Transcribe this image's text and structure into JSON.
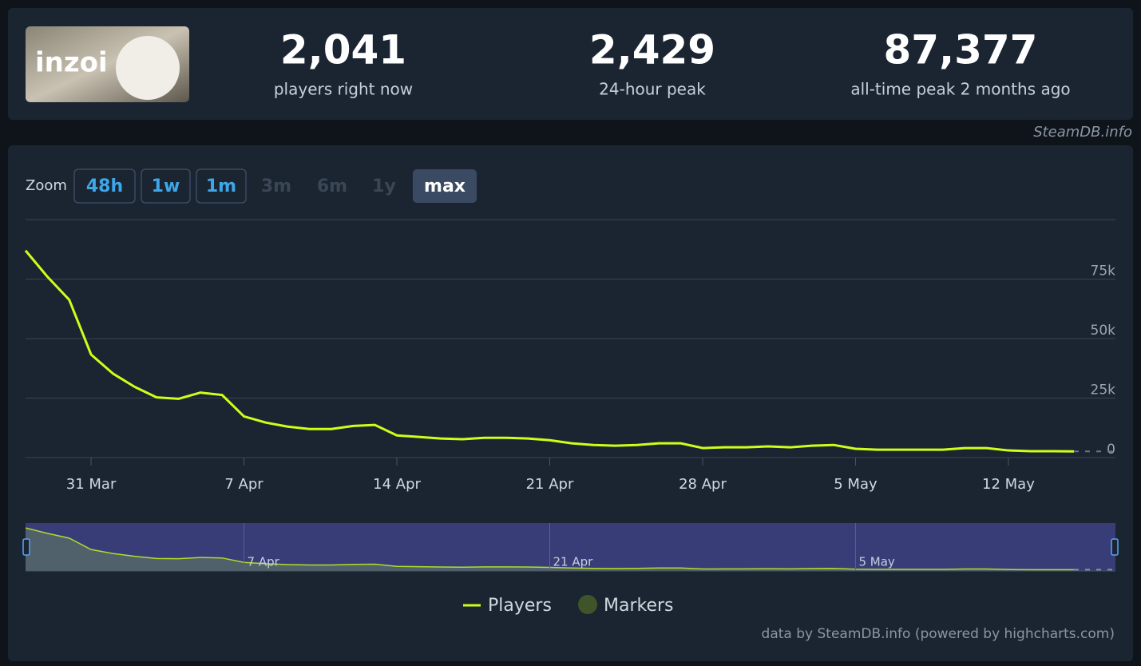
{
  "header": {
    "logo_text": "inzoi",
    "stats": [
      {
        "value": "2,041",
        "label": "players right now"
      },
      {
        "value": "2,429",
        "label": "24-hour peak"
      },
      {
        "value": "87,377",
        "label": "all-time peak 2 months ago"
      }
    ],
    "source": "SteamDB.info"
  },
  "zoom": {
    "label": "Zoom",
    "buttons": [
      {
        "label": "48h",
        "state": "enabled"
      },
      {
        "label": "1w",
        "state": "enabled"
      },
      {
        "label": "1m",
        "state": "enabled"
      },
      {
        "label": "3m",
        "state": "disabled"
      },
      {
        "label": "6m",
        "state": "disabled"
      },
      {
        "label": "1y",
        "state": "disabled"
      },
      {
        "label": "max",
        "state": "selected"
      }
    ]
  },
  "chart_data": {
    "type": "line",
    "categories": [
      null,
      null,
      null,
      "31 Mar",
      null,
      null,
      null,
      null,
      null,
      null,
      "7 Apr",
      null,
      null,
      null,
      null,
      null,
      null,
      "14 Apr",
      null,
      null,
      null,
      null,
      null,
      null,
      "21 Apr",
      null,
      null,
      null,
      null,
      null,
      null,
      "28 Apr",
      null,
      null,
      null,
      null,
      null,
      null,
      "5 May",
      null,
      null,
      null,
      null,
      null,
      null,
      "12 May",
      null,
      null,
      null
    ],
    "series": [
      {
        "name": "Players",
        "color": "#ccff1a",
        "values": [
          87000,
          76000,
          66300,
          43300,
          35300,
          29700,
          25300,
          24700,
          27300,
          26300,
          17300,
          14700,
          13000,
          12000,
          12000,
          13300,
          13700,
          9300,
          8700,
          8000,
          7700,
          8300,
          8300,
          8000,
          7300,
          6000,
          5300,
          5000,
          5300,
          6000,
          6000,
          4000,
          4300,
          4300,
          4700,
          4300,
          5000,
          5300,
          3700,
          3300,
          3300,
          3300,
          3300,
          4000,
          4000,
          3000,
          2700,
          2700,
          2600
        ]
      }
    ],
    "markers": {
      "name": "Markers",
      "color": "#3f5428"
    },
    "ylim": [
      0,
      100000
    ],
    "yticks": [
      0,
      {
        "value": 25000,
        "label": "25k"
      },
      {
        "value": 50000,
        "label": "50k"
      },
      {
        "value": 75000,
        "label": "75k"
      }
    ],
    "grid": true,
    "legend": "bottom",
    "credit": "data by SteamDB.info (powered by highcharts.com)"
  }
}
